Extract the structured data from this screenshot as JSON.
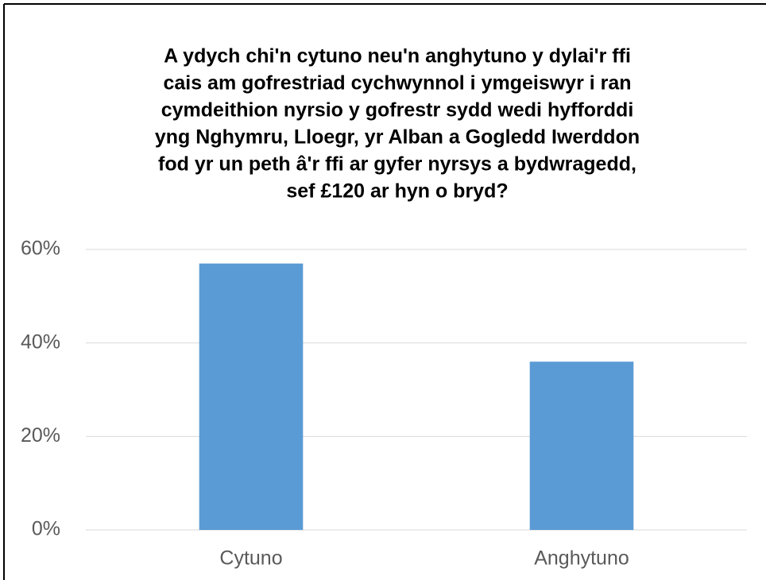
{
  "chart_data": {
    "type": "bar",
    "title": [
      "A ydych chi'n cytuno neu'n anghytuno y dylai'r ffi",
      "cais am gofrestriad cychwynnol i ymgeiswyr i ran",
      "cymdeithion nyrsio y gofrestr sydd wedi hyfforddi",
      "yng Nghymru, Lloegr, yr Alban a Gogledd Iwerddon",
      "fod yr un peth â'r ffi ar gyfer nyrsys a bydwragedd,",
      "sef £120 ar hyn o bryd?"
    ],
    "categories": [
      "Cytuno",
      "Anghytuno"
    ],
    "values": [
      57,
      36
    ],
    "color": "#5b9bd5",
    "ylim": [
      0,
      60
    ],
    "yticks": [
      {
        "value": 0,
        "label": "0%"
      },
      {
        "value": 20,
        "label": "20%"
      },
      {
        "value": 40,
        "label": "40%"
      },
      {
        "value": 60,
        "label": "60%"
      }
    ],
    "grid": true
  }
}
